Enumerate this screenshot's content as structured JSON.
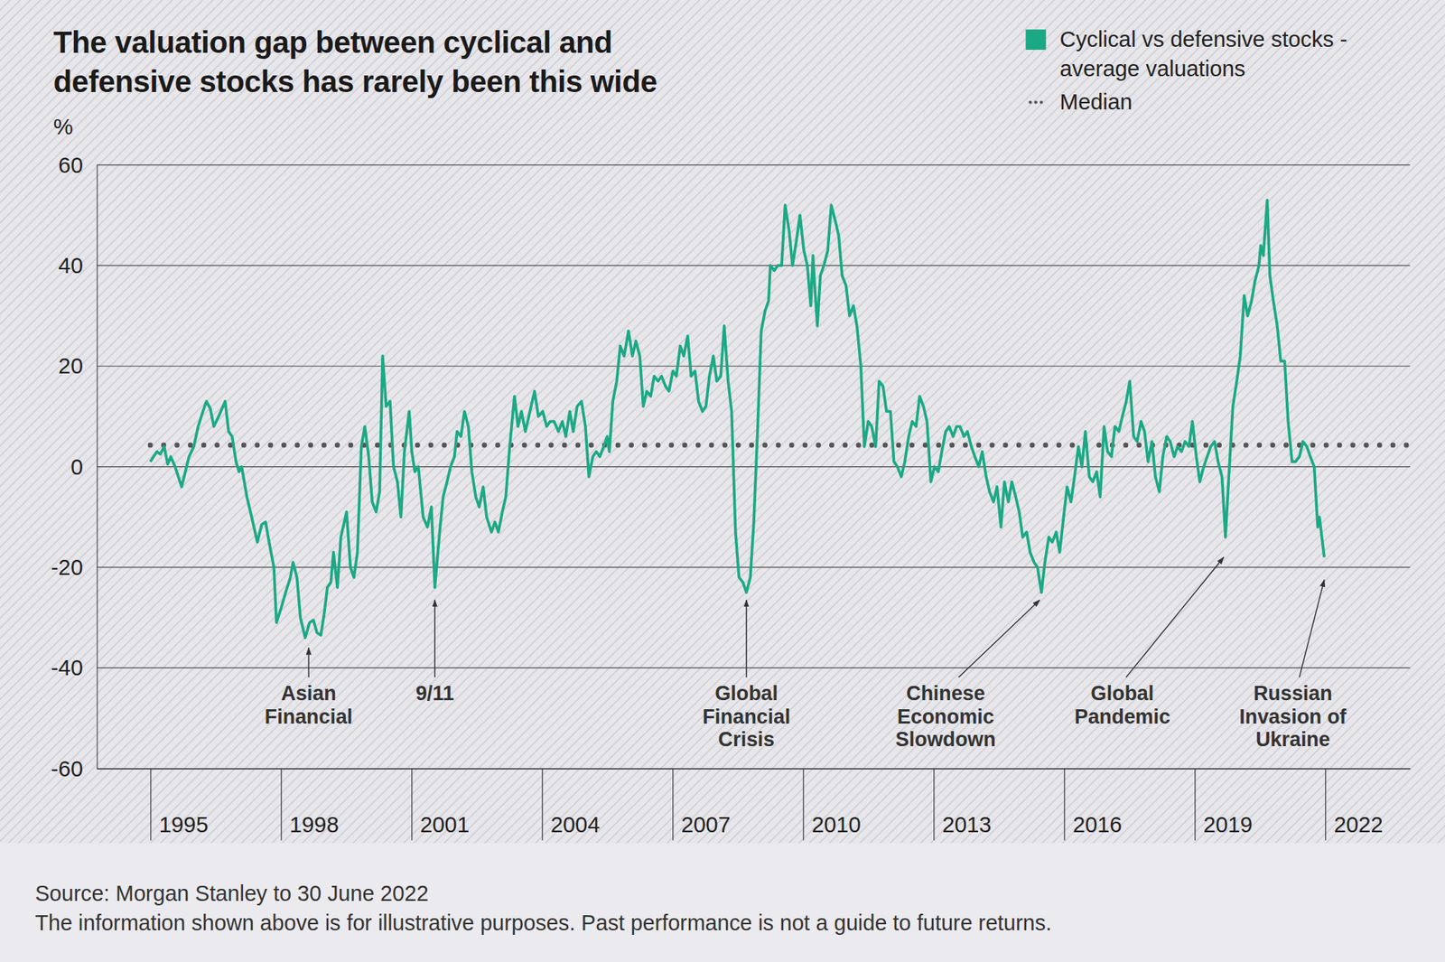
{
  "chart_data": {
    "type": "line",
    "title": "The valuation gap between cyclical and defensive stocks has rarely been this wide",
    "y_label": "%",
    "source": "Source: Morgan Stanley to 30 June 2022",
    "footnote": "The information shown above is for illustrative purposes. Past performance is not a guide to future returns.",
    "legend": "top-right",
    "grid": true,
    "xlim": [
      1993.77,
      2023.95
    ],
    "xticks": [
      1995,
      1998,
      2001,
      2004,
      2007,
      2010,
      2013,
      2016,
      2019,
      2022
    ],
    "ylim": [
      -60,
      60
    ],
    "yticks": [
      -60,
      -40,
      -20,
      0,
      20,
      40,
      60
    ],
    "x": [
      1995.0,
      1995.15,
      1995.23,
      1995.32,
      1995.4,
      1995.47,
      1995.57,
      1995.72,
      1995.89,
      1996.0,
      1996.1,
      1996.21,
      1996.29,
      1996.38,
      1996.46,
      1996.57,
      1996.72,
      1996.8,
      1996.88,
      1996.97,
      1997.04,
      1997.1,
      1997.22,
      1997.33,
      1997.46,
      1997.56,
      1997.65,
      1997.73,
      1997.84,
      1997.9,
      1998.01,
      1998.11,
      1998.22,
      1998.28,
      1998.37,
      1998.45,
      1998.56,
      1998.66,
      1998.75,
      1998.83,
      1998.92,
      1999.0,
      1999.07,
      1999.15,
      1999.21,
      1999.3,
      1999.38,
      1999.51,
      1999.6,
      1999.68,
      1999.76,
      1999.85,
      1999.93,
      2000.02,
      2000.1,
      2000.19,
      2000.27,
      2000.34,
      2000.42,
      2000.51,
      2000.59,
      2000.68,
      2000.76,
      2000.84,
      2000.95,
      2001.01,
      2001.08,
      2001.16,
      2001.27,
      2001.37,
      2001.46,
      2001.54,
      2001.65,
      2001.73,
      2001.82,
      2001.9,
      2001.99,
      2002.05,
      2002.14,
      2002.22,
      2002.31,
      2002.39,
      2002.48,
      2002.56,
      2002.65,
      2002.73,
      2002.84,
      2002.92,
      2003.0,
      2003.09,
      2003.17,
      2003.26,
      2003.37,
      2003.45,
      2003.53,
      2003.62,
      2003.7,
      2003.83,
      2003.92,
      2004.02,
      2004.11,
      2004.19,
      2004.28,
      2004.38,
      2004.47,
      2004.55,
      2004.64,
      2004.72,
      2004.81,
      2004.91,
      2005.0,
      2005.08,
      2005.17,
      2005.25,
      2005.33,
      2005.42,
      2005.5,
      2005.55,
      2005.63,
      2005.72,
      2005.8,
      2005.89,
      2005.99,
      2006.08,
      2006.16,
      2006.25,
      2006.33,
      2006.41,
      2006.5,
      2006.58,
      2006.67,
      2006.75,
      2006.84,
      2006.92,
      2007.01,
      2007.09,
      2007.18,
      2007.26,
      2007.35,
      2007.43,
      2007.52,
      2007.6,
      2007.69,
      2007.77,
      2007.85,
      2007.94,
      2008.02,
      2008.11,
      2008.19,
      2008.28,
      2008.36,
      2008.45,
      2008.53,
      2008.62,
      2008.7,
      2008.79,
      2008.87,
      2008.96,
      2009.04,
      2009.13,
      2009.21,
      2009.25,
      2009.34,
      2009.42,
      2009.51,
      2009.59,
      2009.68,
      2009.76,
      2009.85,
      2009.93,
      2010.02,
      2010.1,
      2010.18,
      2010.23,
      2010.27,
      2010.33,
      2010.4,
      2010.48,
      2010.57,
      2010.65,
      2010.74,
      2010.82,
      2010.9,
      2010.99,
      2011.07,
      2011.16,
      2011.24,
      2011.33,
      2011.41,
      2011.5,
      2011.58,
      2011.67,
      2011.75,
      2011.84,
      2011.92,
      2012.01,
      2012.09,
      2012.17,
      2012.26,
      2012.34,
      2012.43,
      2012.51,
      2012.6,
      2012.68,
      2012.77,
      2012.85,
      2012.94,
      2013.02,
      2013.11,
      2013.19,
      2013.28,
      2013.36,
      2013.45,
      2013.53,
      2013.61,
      2013.7,
      2013.78,
      2013.87,
      2013.95,
      2014.04,
      2014.12,
      2014.21,
      2014.29,
      2014.38,
      2014.46,
      2014.55,
      2014.63,
      2014.72,
      2014.8,
      2014.89,
      2014.97,
      2015.05,
      2015.14,
      2015.22,
      2015.31,
      2015.39,
      2015.48,
      2015.56,
      2015.65,
      2015.73,
      2015.82,
      2015.9,
      2015.99,
      2016.07,
      2016.16,
      2016.24,
      2016.33,
      2016.41,
      2016.49,
      2016.58,
      2016.66,
      2016.75,
      2016.83,
      2016.92,
      2017.0,
      2017.09,
      2017.17,
      2017.26,
      2017.34,
      2017.43,
      2017.51,
      2017.6,
      2017.68,
      2017.77,
      2017.85,
      2017.93,
      2018.02,
      2018.1,
      2018.19,
      2018.27,
      2018.36,
      2018.44,
      2018.53,
      2018.61,
      2018.7,
      2018.78,
      2018.87,
      2018.95,
      2019.04,
      2019.12,
      2019.21,
      2019.29,
      2019.37,
      2019.46,
      2019.54,
      2019.63,
      2019.71,
      2019.8,
      2019.88,
      2019.97,
      2020.05,
      2020.14,
      2020.22,
      2020.31,
      2020.39,
      2020.48,
      2020.52,
      2020.58,
      2020.67,
      2020.73,
      2020.81,
      2020.9,
      2020.98,
      2021.07,
      2021.15,
      2021.24,
      2021.32,
      2021.41,
      2021.49,
      2021.58,
      2021.66,
      2021.75,
      2021.83,
      2021.87,
      2021.98
    ],
    "series": [
      {
        "name": "Cyclical vs defensive stocks - average valuations",
        "color": "#1ba985",
        "values": [
          1,
          3,
          2.5,
          4,
          0.5,
          2,
          0,
          -4,
          2,
          4,
          8,
          11,
          13,
          11.5,
          8,
          10,
          13,
          7,
          6,
          1,
          -1,
          0,
          -6,
          -10,
          -15,
          -11.5,
          -11,
          -15,
          -20,
          -31,
          -28,
          -25,
          -22,
          -19,
          -22,
          -30,
          -34,
          -31,
          -30.5,
          -33,
          -33.5,
          -29,
          -24,
          -23,
          -17,
          -24,
          -14,
          -9,
          -20,
          -22,
          -17,
          4,
          8,
          2,
          -7,
          -9,
          -5,
          22,
          12,
          13,
          0,
          -3,
          -10,
          3,
          11,
          3,
          -1,
          0,
          -10,
          -12,
          -8,
          -24,
          -13,
          -6,
          -3,
          0,
          2,
          7,
          6,
          11,
          8,
          -1,
          -6,
          -8,
          -4,
          -10,
          -13,
          -11,
          -13,
          -9,
          -6,
          4,
          14,
          8,
          11,
          7,
          10,
          15,
          10,
          11,
          8,
          9,
          9,
          7,
          9,
          6,
          11,
          7,
          12,
          13,
          8,
          -2,
          2,
          3,
          2,
          4,
          6,
          3,
          13,
          17,
          24,
          22,
          27,
          22,
          25,
          22,
          12,
          15,
          14,
          18,
          17,
          18,
          16,
          15,
          19,
          18,
          24,
          22,
          26,
          18,
          19,
          13,
          11,
          12,
          18,
          22,
          17,
          18,
          28,
          17,
          11,
          -13,
          -22,
          -23,
          -25,
          -22,
          -11,
          8,
          27,
          31,
          33,
          40,
          39,
          40,
          40,
          52,
          47,
          40,
          45,
          50,
          43,
          40,
          32,
          42,
          36,
          28,
          38,
          40,
          43,
          52,
          49,
          46,
          38,
          36,
          30,
          32,
          28,
          20,
          4,
          9,
          8,
          4,
          17,
          16,
          11,
          11,
          1,
          0,
          -2,
          1,
          6,
          9,
          8,
          14,
          12,
          9,
          -3,
          0,
          -1,
          3,
          7,
          8,
          6,
          8,
          8,
          6,
          7,
          4,
          2,
          0,
          3,
          -2,
          -5,
          -7,
          -4,
          -12,
          -3,
          -7,
          -3,
          -6,
          -9,
          -14,
          -13,
          -17,
          -19,
          -20,
          -25,
          -19,
          -14,
          -15,
          -13,
          -17,
          -10,
          -4,
          -7,
          -2,
          4,
          0,
          7,
          -2,
          -3,
          -1,
          -6,
          8,
          3,
          2,
          8,
          7,
          10,
          13,
          17,
          6,
          5,
          9,
          7,
          1,
          5,
          -2,
          -5,
          2,
          6,
          5,
          2,
          4,
          3,
          5,
          4,
          9,
          2,
          -3,
          0,
          2,
          4,
          5,
          1,
          -2,
          -14,
          0,
          12,
          17,
          22,
          34,
          30,
          33,
          37,
          40,
          44,
          42,
          53,
          38,
          33,
          28,
          21,
          21,
          9,
          1,
          1,
          2,
          5,
          4,
          2,
          0,
          -12,
          -10,
          -18
        ]
      }
    ],
    "reference_lines": [
      {
        "name": "Median",
        "value": 4.3,
        "line_style": "dotted"
      }
    ],
    "annotations": [
      {
        "text": "Asian Financial",
        "x": 1998.64,
        "y": -36
      },
      {
        "text": "9/11",
        "x": 2001.54,
        "y": -26.5
      },
      {
        "text": "Global Financial Crisis",
        "x": 2008.7,
        "y": -26.5
      },
      {
        "text": "Chinese Economic Slowdown",
        "x": 2015.44,
        "y": -26.5
      },
      {
        "text": "Global Pandemic",
        "x": 2019.67,
        "y": -18
      },
      {
        "text": "Russian Invasion of Ukraine",
        "x": 2021.98,
        "y": -22.5
      }
    ]
  }
}
